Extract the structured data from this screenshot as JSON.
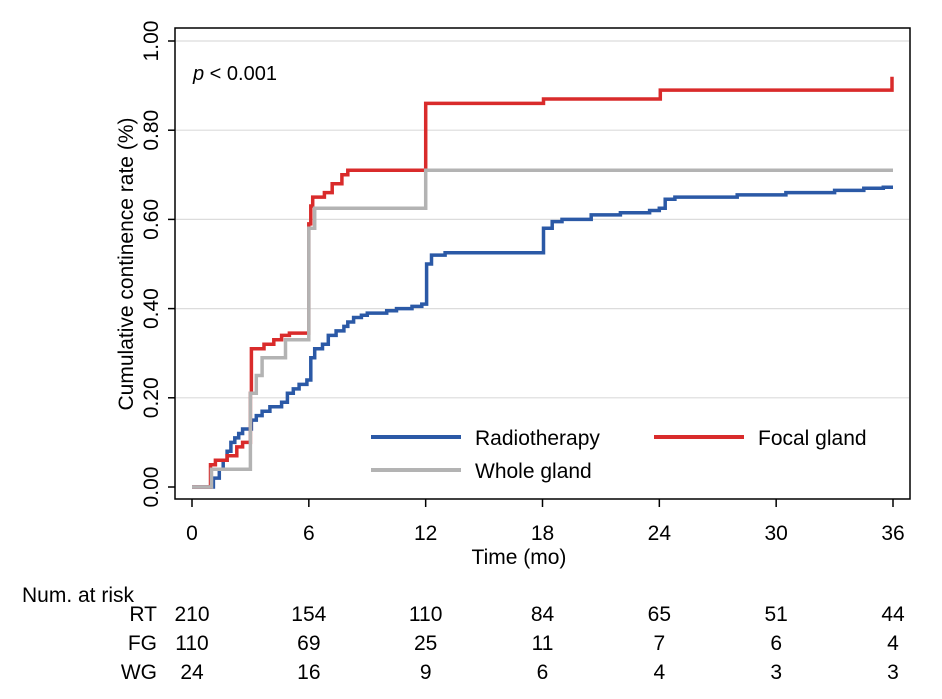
{
  "chart_data": {
    "type": "line",
    "subtype": "kaplan-meier step",
    "annotation": {
      "p_italic": "p",
      "rest": " < 0.001"
    },
    "xlabel": "Time (mo)",
    "ylabel": "Cumulative continence rate (%)",
    "xlim": [
      0,
      36
    ],
    "ylim": [
      0,
      1
    ],
    "xticks": [
      0,
      6,
      12,
      18,
      24,
      30,
      36
    ],
    "xtick_labels": [
      "0",
      "6",
      "12",
      "18",
      "24",
      "30",
      "36"
    ],
    "yticks": [
      0,
      0.2,
      0.4,
      0.6,
      0.8,
      1.0
    ],
    "ytick_labels": [
      "0.00",
      "0.20",
      "0.40",
      "0.60",
      "0.80",
      "1.00"
    ],
    "grid": "horizontal",
    "legend_position": "bottom-right",
    "series": [
      {
        "name": "Radiotherapy",
        "color": "#2b59a6",
        "points": [
          [
            0,
            0
          ],
          [
            1,
            0
          ],
          [
            1.1,
            0.02
          ],
          [
            1.4,
            0.04
          ],
          [
            1.6,
            0.06
          ],
          [
            1.8,
            0.08
          ],
          [
            2.0,
            0.1
          ],
          [
            2.2,
            0.11
          ],
          [
            2.4,
            0.12
          ],
          [
            2.6,
            0.13
          ],
          [
            3,
            0.13
          ],
          [
            3.05,
            0.15
          ],
          [
            3.3,
            0.16
          ],
          [
            3.6,
            0.17
          ],
          [
            4.0,
            0.18
          ],
          [
            4.6,
            0.19
          ],
          [
            4.9,
            0.21
          ],
          [
            5.2,
            0.22
          ],
          [
            5.5,
            0.23
          ],
          [
            5.9,
            0.24
          ],
          [
            6.0,
            0.24
          ],
          [
            6.1,
            0.29
          ],
          [
            6.3,
            0.31
          ],
          [
            6.7,
            0.32
          ],
          [
            7.0,
            0.34
          ],
          [
            7.4,
            0.35
          ],
          [
            7.8,
            0.36
          ],
          [
            8.0,
            0.37
          ],
          [
            8.3,
            0.38
          ],
          [
            8.7,
            0.385
          ],
          [
            9.0,
            0.39
          ],
          [
            10.0,
            0.395
          ],
          [
            10.5,
            0.4
          ],
          [
            11.3,
            0.405
          ],
          [
            11.8,
            0.41
          ],
          [
            12.0,
            0.41
          ],
          [
            12.05,
            0.5
          ],
          [
            12.3,
            0.52
          ],
          [
            13.0,
            0.525
          ],
          [
            18.0,
            0.525
          ],
          [
            18.05,
            0.58
          ],
          [
            18.5,
            0.595
          ],
          [
            19.0,
            0.6
          ],
          [
            20.5,
            0.61
          ],
          [
            22.0,
            0.615
          ],
          [
            23.5,
            0.62
          ],
          [
            24.0,
            0.625
          ],
          [
            24.3,
            0.645
          ],
          [
            24.8,
            0.65
          ],
          [
            28.0,
            0.655
          ],
          [
            30.5,
            0.66
          ],
          [
            33.0,
            0.665
          ],
          [
            34.5,
            0.67
          ],
          [
            35.5,
            0.672
          ],
          [
            36,
            0.672
          ]
        ]
      },
      {
        "name": "Focal gland",
        "color": "#d92b2b",
        "points": [
          [
            0,
            0
          ],
          [
            0.95,
            0
          ],
          [
            0.95,
            0.05
          ],
          [
            1.2,
            0.06
          ],
          [
            1.8,
            0.07
          ],
          [
            2.3,
            0.09
          ],
          [
            2.6,
            0.1
          ],
          [
            3.0,
            0.1
          ],
          [
            3.0,
            0.21
          ],
          [
            3.05,
            0.31
          ],
          [
            3.7,
            0.32
          ],
          [
            4.2,
            0.33
          ],
          [
            4.6,
            0.34
          ],
          [
            5.0,
            0.345
          ],
          [
            5.9,
            0.345
          ],
          [
            6.0,
            0.345
          ],
          [
            6.0,
            0.59
          ],
          [
            6.1,
            0.63
          ],
          [
            6.2,
            0.65
          ],
          [
            6.8,
            0.66
          ],
          [
            7.2,
            0.68
          ],
          [
            7.7,
            0.7
          ],
          [
            8.0,
            0.71
          ],
          [
            12.0,
            0.71
          ],
          [
            12.0,
            0.86
          ],
          [
            18.0,
            0.86
          ],
          [
            18.05,
            0.87
          ],
          [
            24.0,
            0.87
          ],
          [
            24.05,
            0.89
          ],
          [
            35.9,
            0.89
          ],
          [
            35.95,
            0.92
          ]
        ]
      },
      {
        "name": "Whole gland",
        "color": "#b3b3b3",
        "points": [
          [
            0,
            0
          ],
          [
            1.0,
            0
          ],
          [
            1.0,
            0.04
          ],
          [
            3.0,
            0.04
          ],
          [
            3.0,
            0.21
          ],
          [
            3.3,
            0.25
          ],
          [
            3.6,
            0.29
          ],
          [
            4.6,
            0.29
          ],
          [
            4.8,
            0.33
          ],
          [
            5.9,
            0.33
          ],
          [
            6.0,
            0.33
          ],
          [
            6.0,
            0.58
          ],
          [
            6.3,
            0.625
          ],
          [
            12.0,
            0.625
          ],
          [
            12.0,
            0.71
          ],
          [
            36,
            0.71
          ]
        ]
      }
    ]
  },
  "risk_table": {
    "header": "Num. at risk",
    "rows": [
      {
        "label": "RT",
        "values": [
          "210",
          "154",
          "110",
          "84",
          "65",
          "51",
          "44"
        ]
      },
      {
        "label": "FG",
        "values": [
          "110",
          "69",
          "25",
          "11",
          "7",
          "6",
          "4"
        ]
      },
      {
        "label": "WG",
        "values": [
          "24",
          "16",
          "9",
          "6",
          "4",
          "3",
          "3"
        ]
      }
    ]
  }
}
